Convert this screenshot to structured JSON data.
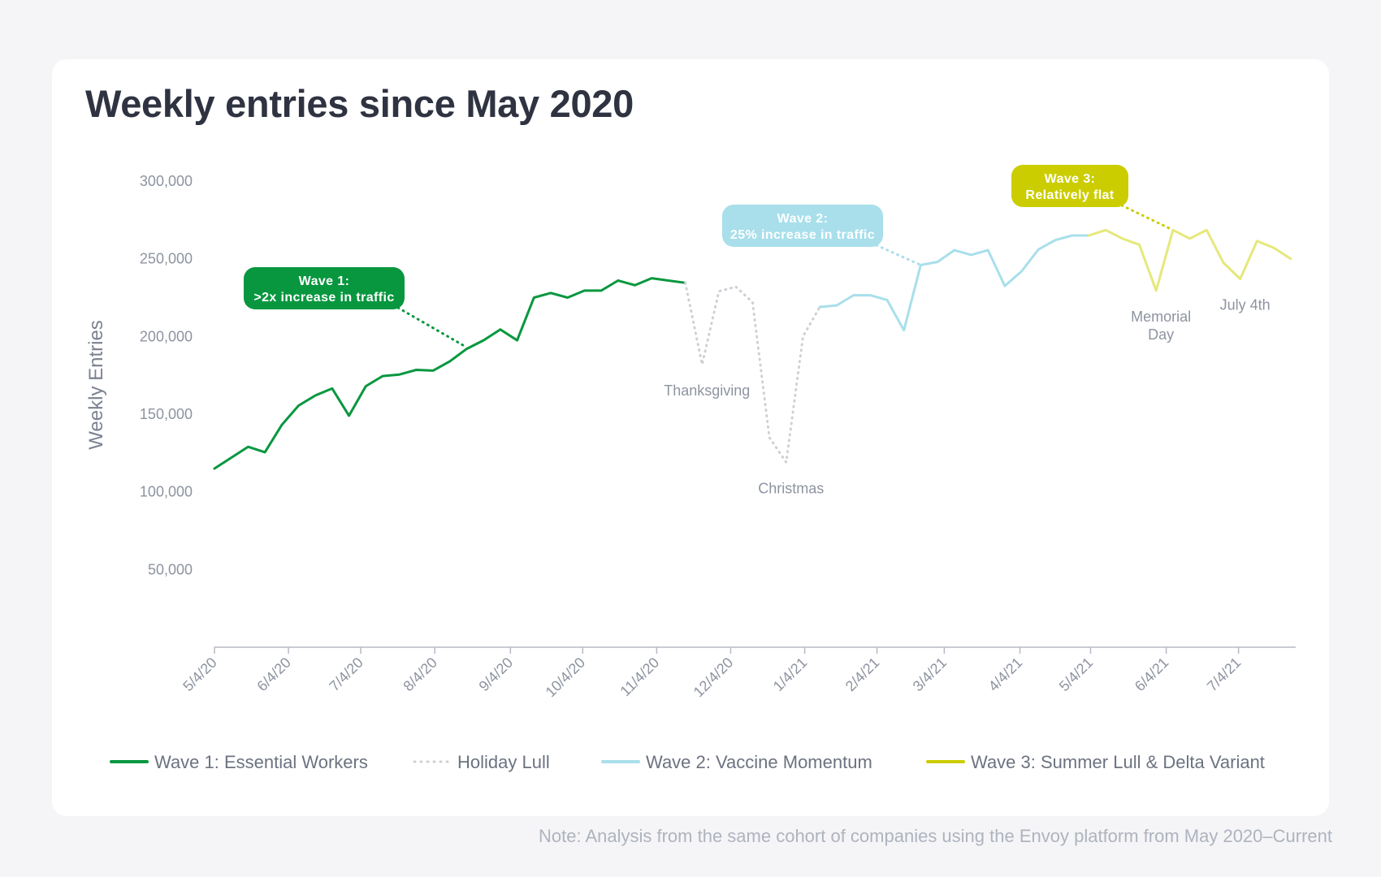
{
  "title": "Weekly entries since May 2020",
  "note": "Note: Analysis from the same cohort of companies using the Envoy platform from May 2020–Current",
  "colors": {
    "wave1": "#08973f",
    "holiday": "#cdd0d6",
    "wave2": "#a8dfeb",
    "wave3": "#cbcd00",
    "wave3_line": "#e6e87a"
  },
  "chart_data": {
    "type": "line",
    "title": "Weekly entries since May 2020",
    "xlabel": "",
    "ylabel": "Weekly Entries",
    "ylim": [
      0,
      300000
    ],
    "y_ticks": [
      50000,
      100000,
      150000,
      200000,
      250000,
      300000
    ],
    "y_tick_labels": [
      "50,000",
      "100,000",
      "150,000",
      "200,000",
      "250,000",
      "300,000"
    ],
    "x_ticks": [
      0,
      4.4,
      8.7,
      13.1,
      17.6,
      21.9,
      26.3,
      30.7,
      35.1,
      39.4,
      43.4,
      47.9,
      52.1,
      56.6,
      60.9
    ],
    "x_tick_labels": [
      "5/4/20",
      "6/4/20",
      "7/4/20",
      "8/4/20",
      "9/4/20",
      "10/4/20",
      "11/4/20",
      "12/4/20",
      "1/4/21",
      "2/4/21",
      "3/4/21",
      "4/4/21",
      "5/4/21",
      "6/4/21",
      "7/4/21"
    ],
    "xlim": [
      0,
      64.3
    ],
    "grid": false,
    "series": [
      {
        "name": "Wave 1: Essential Workers",
        "style": "solid",
        "color": "#08973f",
        "x": [
          0,
          1,
          2,
          3,
          4,
          5,
          6,
          7,
          8,
          9,
          10,
          11,
          12,
          13,
          14,
          15,
          16,
          17,
          18,
          19,
          20,
          21,
          22,
          23,
          24,
          25,
          26,
          27,
          28
        ],
        "values": [
          115000,
          122000,
          129000,
          125500,
          143000,
          155500,
          162000,
          166500,
          149000,
          168000,
          174500,
          175500,
          178500,
          178000,
          184000,
          192000,
          197500,
          204500,
          197500,
          225000,
          228000,
          225000,
          229500,
          229500,
          236000,
          233000,
          237500,
          236000,
          234500
        ]
      },
      {
        "name": "Holiday Lull",
        "style": "dotted",
        "color": "#cdd0d6",
        "x": [
          28,
          29,
          30,
          31,
          32,
          33,
          34,
          35,
          36
        ],
        "values": [
          234500,
          182000,
          229000,
          232000,
          222000,
          135000,
          119000,
          200000,
          219000
        ]
      },
      {
        "name": "Wave 2: Vaccine Momentum",
        "style": "solid",
        "color": "#a8dfeb",
        "x": [
          36,
          37,
          38,
          39,
          40,
          41,
          42,
          43,
          44,
          45,
          46,
          47,
          48,
          49,
          50,
          51,
          52
        ],
        "values": [
          219000,
          220000,
          226500,
          226500,
          223500,
          204000,
          246000,
          248000,
          255500,
          252500,
          255500,
          232500,
          242000,
          256000,
          262000,
          265000,
          265000
        ]
      },
      {
        "name": "Wave 3: Summer Lull & Delta Variant",
        "style": "solid",
        "color": "#e6e87a",
        "x": [
          52,
          53,
          54,
          55,
          56,
          57,
          58,
          59,
          60,
          61,
          62,
          63,
          64
        ],
        "values": [
          265000,
          268500,
          263000,
          259000,
          229500,
          268500,
          263000,
          268500,
          247500,
          237000,
          261500,
          257000,
          250000
        ]
      }
    ],
    "annotations": [
      {
        "text": "Thanksgiving",
        "x": 29,
        "y": 182000
      },
      {
        "text": "Christmas",
        "x": 34,
        "y": 119000
      },
      {
        "text": "Memorial",
        "text2": "Day",
        "x": 56,
        "y": 229500
      },
      {
        "text": "July 4th",
        "x": 61,
        "y": 237000
      }
    ],
    "callouts": [
      {
        "line1": "Wave 1:",
        "line2": ">2x increase in traffic",
        "color": "#08973f",
        "point_x": 15,
        "point_y": 193000
      },
      {
        "line1": "Wave 2:",
        "line2": "25% increase in traffic",
        "color": "#a8dfeb",
        "point_x": 42,
        "point_y": 246000
      },
      {
        "line1": "Wave 3:",
        "line2": "Relatively flat",
        "color": "#cbcd00",
        "point_x": 57,
        "point_y": 268500
      }
    ],
    "legend": [
      {
        "label": "Wave 1: Essential Workers",
        "style": "solid",
        "color": "#08973f"
      },
      {
        "label": "Holiday Lull",
        "style": "dotted",
        "color": "#cdd0d6"
      },
      {
        "label": "Wave 2: Vaccine Momentum",
        "style": "solid",
        "color": "#a8dfeb"
      },
      {
        "label": "Wave 3: Summer Lull & Delta Variant",
        "style": "solid",
        "color": "#cbcd00"
      }
    ]
  }
}
